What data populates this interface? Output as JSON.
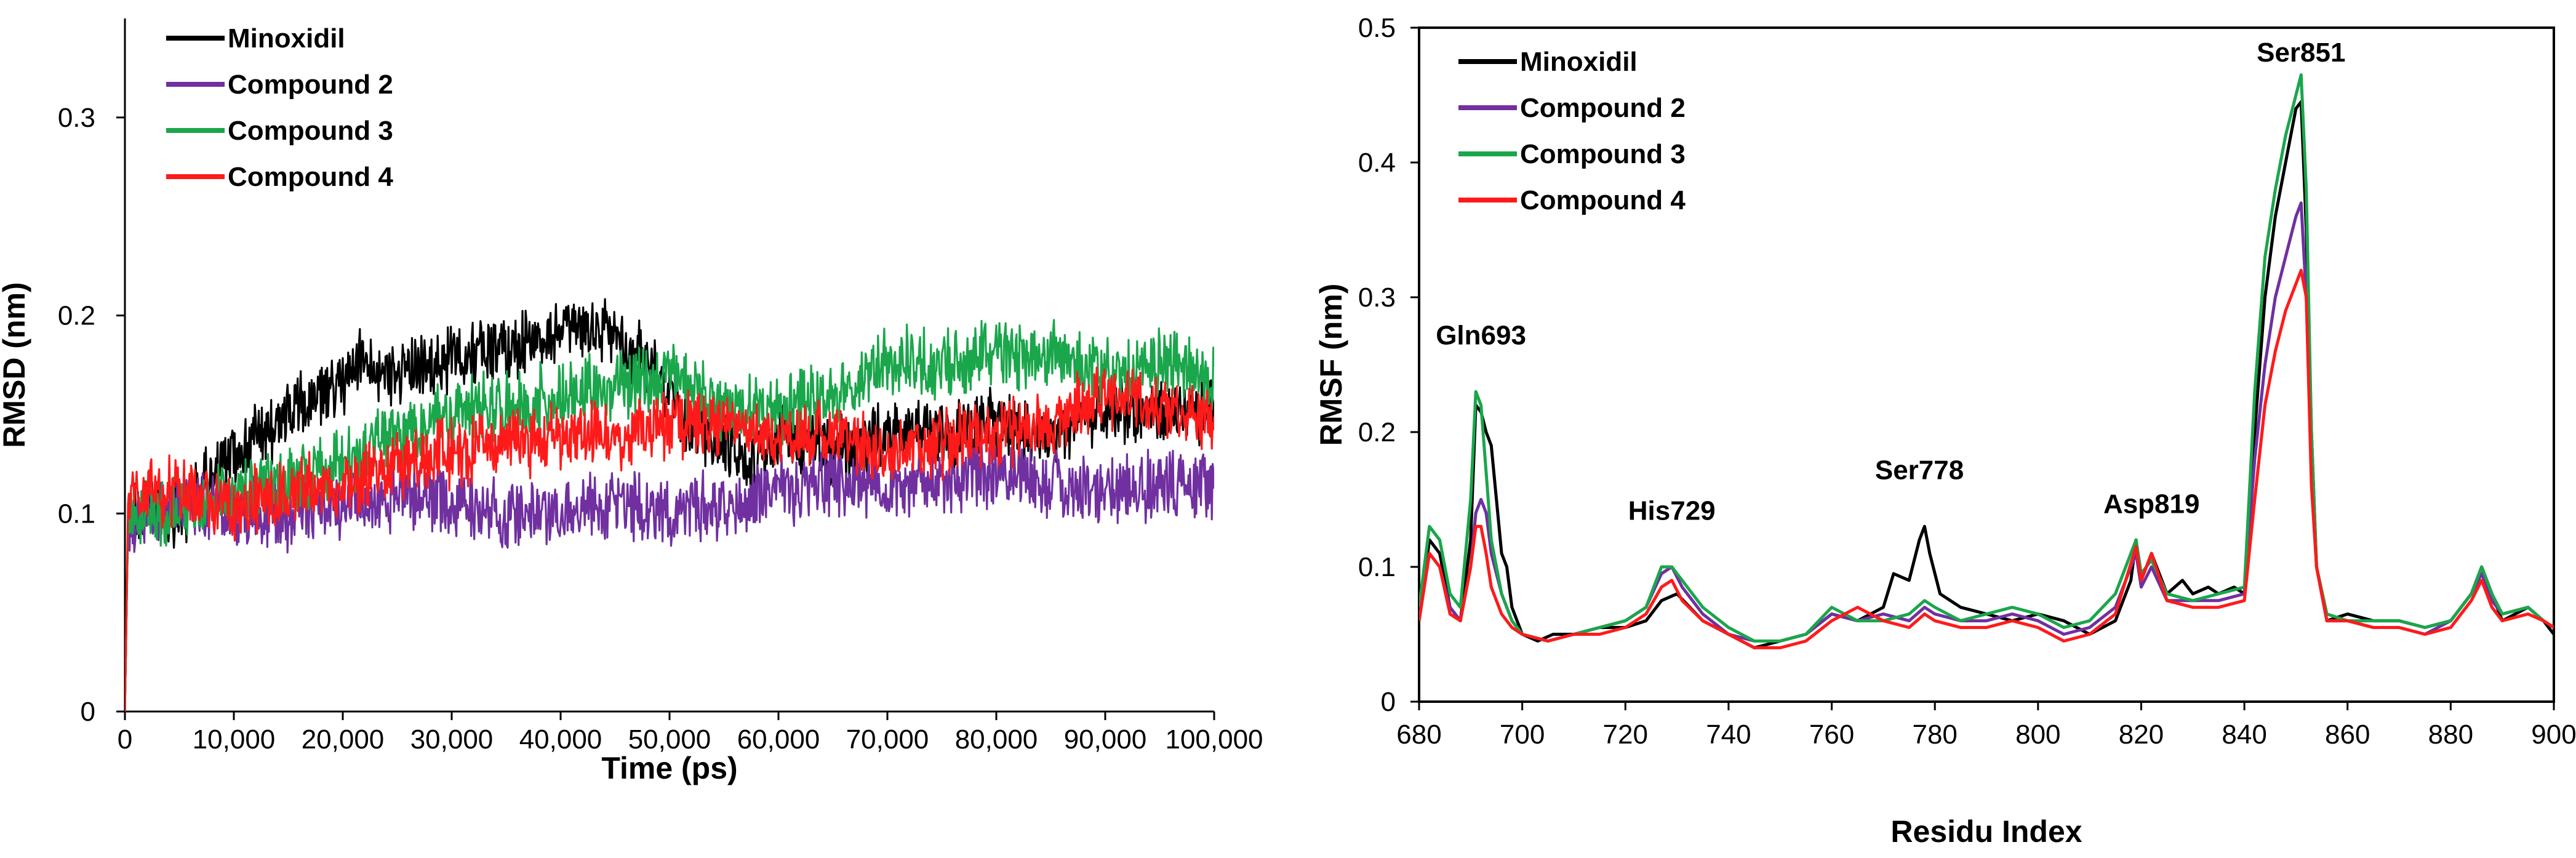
{
  "chart_data": [
    {
      "type": "line",
      "title": "",
      "xlabel": "Time (ps)",
      "ylabel": "RMSD (nm)",
      "xlim": [
        0,
        100000
      ],
      "ylim": [
        0,
        0.35
      ],
      "xticks": [
        "0",
        "10,000",
        "20,000",
        "30,000",
        "40,000",
        "50,000",
        "60,000",
        "70,000",
        "80,000",
        "90,000",
        "100,000"
      ],
      "yticks": [
        "0",
        "0.1",
        "0.2",
        "0.3"
      ],
      "legend_position": "top-left",
      "colors": {
        "Minoxidil": "#000000",
        "Compound 2": "#7030a0",
        "Compound 3": "#1aa64b",
        "Compound 4": "#ff1a1a"
      },
      "series": [
        {
          "name": "Minoxidil",
          "x": [
            0,
            300,
            2000,
            5000,
            8000,
            10000,
            15000,
            20000,
            22000,
            24000,
            26000,
            28000,
            30000,
            35000,
            40000,
            44000,
            46000,
            48000,
            50000,
            52000,
            55000,
            58000,
            60000,
            62000,
            65000,
            70000,
            75000,
            80000,
            85000,
            90000,
            95000,
            100000
          ],
          "y": [
            0,
            0.1,
            0.1,
            0.1,
            0.12,
            0.13,
            0.15,
            0.165,
            0.18,
            0.17,
            0.175,
            0.17,
            0.18,
            0.185,
            0.19,
            0.195,
            0.185,
            0.175,
            0.16,
            0.14,
            0.135,
            0.125,
            0.14,
            0.135,
            0.13,
            0.14,
            0.14,
            0.145,
            0.14,
            0.15,
            0.15,
            0.155
          ]
        },
        {
          "name": "Compound 2",
          "x": [
            0,
            300,
            2000,
            5000,
            8000,
            10000,
            15000,
            20000,
            25000,
            30000,
            35000,
            40000,
            45000,
            50000,
            55000,
            60000,
            65000,
            70000,
            75000,
            80000,
            85000,
            90000,
            95000,
            100000
          ],
          "y": [
            0,
            0.1,
            0.1,
            0.105,
            0.105,
            0.1,
            0.1,
            0.105,
            0.11,
            0.105,
            0.1,
            0.1,
            0.105,
            0.1,
            0.105,
            0.11,
            0.115,
            0.115,
            0.115,
            0.12,
            0.115,
            0.11,
            0.115,
            0.115
          ]
        },
        {
          "name": "Compound 3",
          "x": [
            0,
            300,
            2000,
            5000,
            8000,
            10000,
            15000,
            20000,
            25000,
            30000,
            35000,
            40000,
            45000,
            50000,
            55000,
            60000,
            65000,
            70000,
            75000,
            80000,
            85000,
            90000,
            95000,
            100000
          ],
          "y": [
            0,
            0.1,
            0.1,
            0.1,
            0.105,
            0.11,
            0.115,
            0.125,
            0.14,
            0.15,
            0.155,
            0.16,
            0.165,
            0.17,
            0.155,
            0.15,
            0.16,
            0.18,
            0.175,
            0.18,
            0.18,
            0.17,
            0.175,
            0.17
          ]
        },
        {
          "name": "Compound 4",
          "x": [
            0,
            300,
            2000,
            5000,
            8000,
            10000,
            15000,
            20000,
            25000,
            30000,
            35000,
            40000,
            45000,
            50000,
            55000,
            60000,
            65000,
            70000,
            75000,
            80000,
            85000,
            90000,
            95000,
            100000
          ],
          "y": [
            0,
            0.11,
            0.11,
            0.11,
            0.105,
            0.105,
            0.11,
            0.115,
            0.125,
            0.13,
            0.135,
            0.14,
            0.14,
            0.145,
            0.145,
            0.14,
            0.14,
            0.13,
            0.135,
            0.14,
            0.145,
            0.16,
            0.155,
            0.15
          ]
        }
      ]
    },
    {
      "type": "line",
      "title": "",
      "xlabel": "Residu Index",
      "ylabel": "RMSF (nm)",
      "xlim": [
        680,
        900
      ],
      "ylim": [
        0,
        0.5
      ],
      "xticks": [
        "680",
        "700",
        "720",
        "740",
        "760",
        "780",
        "800",
        "820",
        "840",
        "860",
        "880",
        "900"
      ],
      "yticks": [
        "0",
        "0.1",
        "0.2",
        "0.3",
        "0.4",
        "0.5"
      ],
      "legend_position": "top-left",
      "annotations": [
        {
          "text": "Gln693",
          "x": 692,
          "y": 0.265
        },
        {
          "text": "His729",
          "x": 729,
          "y": 0.135
        },
        {
          "text": "Ser778",
          "x": 777,
          "y": 0.165
        },
        {
          "text": "Asp819",
          "x": 822,
          "y": 0.14
        },
        {
          "text": "Ser851",
          "x": 851,
          "y": 0.475
        }
      ],
      "colors": {
        "Minoxidil": "#000000",
        "Compound 2": "#7030a0",
        "Compound 3": "#1aa64b",
        "Compound 4": "#ff1a1a"
      },
      "series": [
        {
          "name": "Minoxidil",
          "x": [
            680,
            682,
            684,
            686,
            688,
            690,
            691,
            692,
            693,
            694,
            695,
            696,
            697,
            698,
            700,
            703,
            706,
            710,
            715,
            720,
            724,
            727,
            730,
            735,
            740,
            745,
            750,
            755,
            760,
            765,
            770,
            772,
            775,
            777,
            778,
            779,
            781,
            785,
            790,
            795,
            800,
            805,
            810,
            815,
            818,
            819,
            820,
            822,
            823,
            825,
            828,
            830,
            833,
            835,
            838,
            840,
            842,
            844,
            846,
            848,
            850,
            851,
            852,
            853,
            854,
            856,
            860,
            865,
            870,
            875,
            880,
            884,
            886,
            888,
            890,
            895,
            898,
            900
          ],
          "y": [
            0.06,
            0.12,
            0.11,
            0.07,
            0.06,
            0.12,
            0.22,
            0.215,
            0.2,
            0.19,
            0.15,
            0.11,
            0.1,
            0.07,
            0.05,
            0.045,
            0.05,
            0.05,
            0.055,
            0.055,
            0.06,
            0.075,
            0.08,
            0.06,
            0.05,
            0.04,
            0.045,
            0.05,
            0.065,
            0.06,
            0.07,
            0.095,
            0.09,
            0.12,
            0.13,
            0.11,
            0.08,
            0.07,
            0.065,
            0.06,
            0.065,
            0.06,
            0.05,
            0.06,
            0.09,
            0.12,
            0.09,
            0.11,
            0.1,
            0.08,
            0.09,
            0.08,
            0.085,
            0.08,
            0.085,
            0.08,
            0.2,
            0.3,
            0.36,
            0.4,
            0.44,
            0.445,
            0.35,
            0.2,
            0.1,
            0.06,
            0.065,
            0.06,
            0.06,
            0.055,
            0.06,
            0.08,
            0.1,
            0.08,
            0.06,
            0.07,
            0.06,
            0.05
          ]
        },
        {
          "name": "Compound 2",
          "x": [
            680,
            682,
            684,
            686,
            688,
            690,
            691,
            692,
            693,
            694,
            696,
            698,
            700,
            705,
            710,
            715,
            720,
            724,
            727,
            729,
            731,
            735,
            740,
            745,
            750,
            755,
            760,
            765,
            770,
            775,
            778,
            780,
            785,
            790,
            795,
            800,
            805,
            810,
            815,
            819,
            820,
            822,
            825,
            830,
            835,
            840,
            842,
            844,
            846,
            848,
            850,
            851,
            852,
            853,
            854,
            856,
            860,
            865,
            870,
            875,
            880,
            884,
            886,
            888,
            890,
            895,
            898,
            900
          ],
          "y": [
            0.06,
            0.11,
            0.1,
            0.07,
            0.06,
            0.1,
            0.14,
            0.15,
            0.14,
            0.11,
            0.08,
            0.06,
            0.05,
            0.045,
            0.05,
            0.055,
            0.06,
            0.07,
            0.095,
            0.1,
            0.085,
            0.065,
            0.05,
            0.045,
            0.045,
            0.05,
            0.065,
            0.06,
            0.065,
            0.06,
            0.07,
            0.065,
            0.06,
            0.06,
            0.065,
            0.06,
            0.05,
            0.055,
            0.07,
            0.11,
            0.085,
            0.1,
            0.075,
            0.075,
            0.075,
            0.08,
            0.18,
            0.25,
            0.3,
            0.33,
            0.36,
            0.37,
            0.3,
            0.17,
            0.1,
            0.06,
            0.06,
            0.055,
            0.055,
            0.05,
            0.06,
            0.08,
            0.095,
            0.075,
            0.065,
            0.07,
            0.06,
            0.055
          ]
        },
        {
          "name": "Compound 3",
          "x": [
            680,
            682,
            684,
            686,
            688,
            690,
            691,
            692,
            693,
            694,
            696,
            698,
            700,
            705,
            710,
            715,
            720,
            724,
            727,
            729,
            731,
            735,
            740,
            745,
            750,
            755,
            760,
            765,
            770,
            775,
            778,
            780,
            785,
            790,
            795,
            800,
            805,
            810,
            815,
            819,
            820,
            822,
            825,
            830,
            835,
            840,
            842,
            844,
            846,
            848,
            850,
            851,
            852,
            853,
            854,
            856,
            860,
            865,
            870,
            875,
            880,
            884,
            886,
            888,
            890,
            895,
            898,
            900
          ],
          "y": [
            0.07,
            0.13,
            0.12,
            0.08,
            0.07,
            0.15,
            0.23,
            0.22,
            0.17,
            0.12,
            0.08,
            0.06,
            0.05,
            0.045,
            0.05,
            0.055,
            0.06,
            0.07,
            0.1,
            0.1,
            0.09,
            0.07,
            0.055,
            0.045,
            0.045,
            0.05,
            0.07,
            0.06,
            0.06,
            0.065,
            0.075,
            0.07,
            0.06,
            0.065,
            0.07,
            0.065,
            0.055,
            0.06,
            0.08,
            0.12,
            0.095,
            0.105,
            0.08,
            0.075,
            0.08,
            0.085,
            0.23,
            0.33,
            0.38,
            0.42,
            0.45,
            0.465,
            0.38,
            0.2,
            0.1,
            0.065,
            0.06,
            0.06,
            0.06,
            0.055,
            0.06,
            0.08,
            0.1,
            0.08,
            0.065,
            0.07,
            0.06,
            0.055
          ]
        },
        {
          "name": "Compound 4",
          "x": [
            680,
            682,
            684,
            686,
            688,
            690,
            691,
            692,
            693,
            694,
            696,
            698,
            700,
            705,
            710,
            715,
            720,
            724,
            727,
            729,
            731,
            735,
            740,
            745,
            750,
            755,
            760,
            765,
            770,
            775,
            778,
            780,
            785,
            790,
            795,
            800,
            805,
            810,
            815,
            819,
            820,
            822,
            825,
            830,
            835,
            840,
            842,
            844,
            846,
            848,
            850,
            851,
            852,
            853,
            854,
            856,
            860,
            865,
            870,
            875,
            880,
            884,
            886,
            888,
            890,
            895,
            898,
            900
          ],
          "y": [
            0.06,
            0.11,
            0.1,
            0.065,
            0.06,
            0.1,
            0.13,
            0.13,
            0.11,
            0.085,
            0.065,
            0.055,
            0.05,
            0.045,
            0.05,
            0.05,
            0.055,
            0.065,
            0.085,
            0.09,
            0.075,
            0.06,
            0.05,
            0.04,
            0.04,
            0.045,
            0.06,
            0.07,
            0.06,
            0.055,
            0.065,
            0.06,
            0.055,
            0.055,
            0.06,
            0.055,
            0.045,
            0.05,
            0.065,
            0.115,
            0.09,
            0.11,
            0.075,
            0.07,
            0.07,
            0.075,
            0.15,
            0.22,
            0.26,
            0.29,
            0.31,
            0.32,
            0.3,
            0.16,
            0.1,
            0.06,
            0.06,
            0.055,
            0.055,
            0.05,
            0.055,
            0.075,
            0.09,
            0.07,
            0.06,
            0.065,
            0.06,
            0.055
          ]
        }
      ]
    }
  ]
}
